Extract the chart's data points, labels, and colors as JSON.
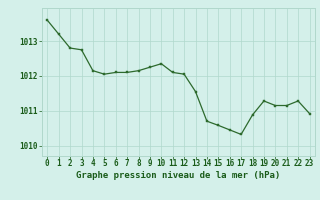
{
  "hours": [
    0,
    1,
    2,
    3,
    4,
    5,
    6,
    7,
    8,
    9,
    10,
    11,
    12,
    13,
    14,
    15,
    16,
    17,
    18,
    19,
    20,
    21,
    22,
    23
  ],
  "pressure": [
    1013.6,
    1013.2,
    1012.8,
    1012.75,
    1012.15,
    1012.05,
    1012.1,
    1012.1,
    1012.15,
    1012.25,
    1012.35,
    1012.1,
    1012.05,
    1011.55,
    1010.7,
    1010.58,
    1010.45,
    1010.32,
    1010.88,
    1011.28,
    1011.15,
    1011.15,
    1011.28,
    1010.92
  ],
  "line_color": "#2d6a2d",
  "marker_color": "#2d6a2d",
  "bg_color": "#d4f0ea",
  "grid_color": "#b0d8cc",
  "xlabel": "Graphe pression niveau de la mer (hPa)",
  "xlabel_color": "#1a5c1a",
  "ylim": [
    1009.7,
    1013.95
  ],
  "yticks": [
    1010,
    1011,
    1012,
    1013
  ],
  "tick_font_size": 5.5,
  "label_font_size": 6.5
}
